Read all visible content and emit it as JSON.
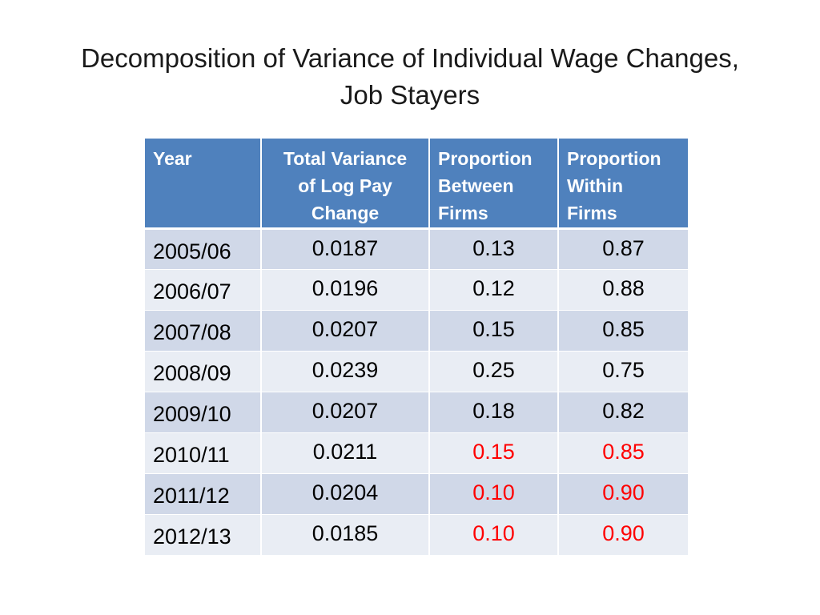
{
  "title": {
    "line1": "Decomposition of Variance of Individual Wage Changes,",
    "line2": "Job Stayers"
  },
  "table": {
    "headers": {
      "year": "Year",
      "total_variance": [
        "Total Variance",
        "of Log Pay",
        "Change"
      ],
      "between": [
        "Proportion",
        "Between",
        "Firms"
      ],
      "within": [
        "Proportion",
        "Within",
        "Firms"
      ]
    },
    "rows": [
      {
        "year": "2005/06",
        "total": "0.0187",
        "between": "0.13",
        "within": "0.87",
        "highlight": false
      },
      {
        "year": "2006/07",
        "total": "0.0196",
        "between": "0.12",
        "within": "0.88",
        "highlight": false
      },
      {
        "year": "2007/08",
        "total": "0.0207",
        "between": "0.15",
        "within": "0.85",
        "highlight": false
      },
      {
        "year": "2008/09",
        "total": "0.0239",
        "between": "0.25",
        "within": "0.75",
        "highlight": false
      },
      {
        "year": "2009/10",
        "total": "0.0207",
        "between": "0.18",
        "within": "0.82",
        "highlight": false
      },
      {
        "year": "2010/11",
        "total": "0.0211",
        "between": "0.15",
        "within": "0.85",
        "highlight": true
      },
      {
        "year": "2011/12",
        "total": "0.0204",
        "between": "0.10",
        "within": "0.90",
        "highlight": true
      },
      {
        "year": "2012/13",
        "total": "0.0185",
        "between": "0.10",
        "within": "0.90",
        "highlight": true
      }
    ]
  },
  "colors": {
    "header_bg": "#4f81bd",
    "row_odd": "#d0d8e8",
    "row_even": "#e9edf4",
    "highlight_text": "#ff0000"
  }
}
